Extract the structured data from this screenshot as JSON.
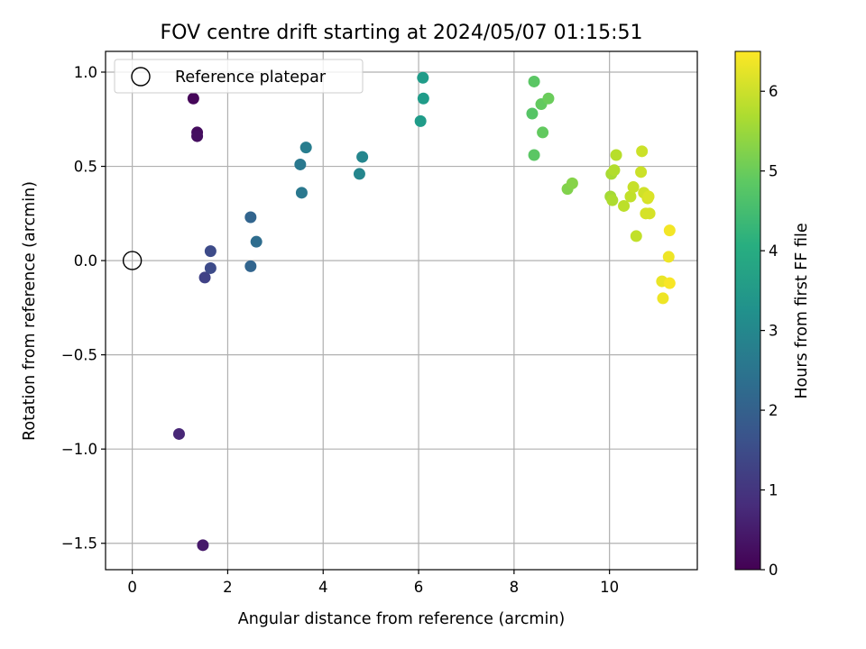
{
  "chart_data": {
    "type": "scatter",
    "title": "FOV centre drift starting at 2024/05/07 01:15:51",
    "xlabel": "Angular distance from reference (arcmin)",
    "ylabel": "Rotation from reference (arcmin)",
    "xlim": [
      -0.56,
      11.84
    ],
    "ylim": [
      -1.64,
      1.11
    ],
    "x_ticks": [
      0,
      2,
      4,
      6,
      8,
      10
    ],
    "y_ticks": [
      -1.5,
      -1.0,
      -0.5,
      0.0,
      0.5,
      1.0
    ],
    "x_tick_labels": [
      "0",
      "2",
      "4",
      "6",
      "8",
      "10"
    ],
    "y_tick_labels": [
      "−1.5",
      "−1.0",
      "−0.5",
      "0.0",
      "0.5",
      "1.0"
    ],
    "grid": true,
    "legend": {
      "placement": "top-left",
      "entries": [
        "Reference platepar"
      ]
    },
    "reference_point": {
      "x": 0.0,
      "y": 0.0,
      "label": "Reference platepar",
      "marker": "open-circle"
    },
    "colormap": "viridis",
    "colorbar": {
      "label": "Hours from first FF file",
      "min": 0,
      "max": 6.5,
      "ticks": [
        0,
        1,
        2,
        3,
        4,
        5,
        6
      ],
      "tick_labels": [
        "0",
        "1",
        "2",
        "3",
        "4",
        "5",
        "6"
      ]
    },
    "points": [
      {
        "x": 1.28,
        "y": 0.86,
        "hours": 0.1
      },
      {
        "x": 1.36,
        "y": 0.68,
        "hours": 0.2
      },
      {
        "x": 1.36,
        "y": 0.66,
        "hours": 0.25
      },
      {
        "x": 0.98,
        "y": -0.92,
        "hours": 0.7
      },
      {
        "x": 1.48,
        "y": -1.51,
        "hours": 0.45
      },
      {
        "x": 1.52,
        "y": -0.09,
        "hours": 1.3
      },
      {
        "x": 1.64,
        "y": -0.04,
        "hours": 1.5
      },
      {
        "x": 1.64,
        "y": 0.05,
        "hours": 1.5
      },
      {
        "x": 2.48,
        "y": 0.23,
        "hours": 2.1
      },
      {
        "x": 2.48,
        "y": -0.03,
        "hours": 2.1
      },
      {
        "x": 2.6,
        "y": 0.1,
        "hours": 2.3
      },
      {
        "x": 3.52,
        "y": 0.51,
        "hours": 2.6
      },
      {
        "x": 3.55,
        "y": 0.36,
        "hours": 2.6
      },
      {
        "x": 3.64,
        "y": 0.6,
        "hours": 2.75
      },
      {
        "x": 4.76,
        "y": 0.46,
        "hours": 3.0
      },
      {
        "x": 4.82,
        "y": 0.55,
        "hours": 3.0
      },
      {
        "x": 6.04,
        "y": 0.74,
        "hours": 3.55
      },
      {
        "x": 6.09,
        "y": 0.97,
        "hours": 3.55
      },
      {
        "x": 6.1,
        "y": 0.86,
        "hours": 3.55
      },
      {
        "x": 8.38,
        "y": 0.78,
        "hours": 4.75
      },
      {
        "x": 8.42,
        "y": 0.95,
        "hours": 4.8
      },
      {
        "x": 8.42,
        "y": 0.56,
        "hours": 4.8
      },
      {
        "x": 8.57,
        "y": 0.83,
        "hours": 4.9
      },
      {
        "x": 8.6,
        "y": 0.68,
        "hours": 4.9
      },
      {
        "x": 8.72,
        "y": 0.86,
        "hours": 5.0
      },
      {
        "x": 9.12,
        "y": 0.38,
        "hours": 5.25
      },
      {
        "x": 9.22,
        "y": 0.41,
        "hours": 5.3
      },
      {
        "x": 10.02,
        "y": 0.34,
        "hours": 5.6
      },
      {
        "x": 10.04,
        "y": 0.46,
        "hours": 5.65
      },
      {
        "x": 10.06,
        "y": 0.32,
        "hours": 5.7
      },
      {
        "x": 10.1,
        "y": 0.48,
        "hours": 5.75
      },
      {
        "x": 10.14,
        "y": 0.56,
        "hours": 5.8
      },
      {
        "x": 10.3,
        "y": 0.29,
        "hours": 5.85
      },
      {
        "x": 10.44,
        "y": 0.34,
        "hours": 5.9
      },
      {
        "x": 10.5,
        "y": 0.39,
        "hours": 5.95
      },
      {
        "x": 10.56,
        "y": 0.13,
        "hours": 5.9
      },
      {
        "x": 10.66,
        "y": 0.47,
        "hours": 6.0
      },
      {
        "x": 10.68,
        "y": 0.58,
        "hours": 6.0
      },
      {
        "x": 10.72,
        "y": 0.36,
        "hours": 6.05
      },
      {
        "x": 10.76,
        "y": 0.25,
        "hours": 6.1
      },
      {
        "x": 10.8,
        "y": 0.33,
        "hours": 6.1
      },
      {
        "x": 10.82,
        "y": 0.34,
        "hours": 6.15
      },
      {
        "x": 10.84,
        "y": 0.25,
        "hours": 6.1
      },
      {
        "x": 11.1,
        "y": -0.11,
        "hours": 6.3
      },
      {
        "x": 11.12,
        "y": -0.2,
        "hours": 6.35
      },
      {
        "x": 11.24,
        "y": 0.02,
        "hours": 6.35
      },
      {
        "x": 11.26,
        "y": 0.16,
        "hours": 6.4
      },
      {
        "x": 11.26,
        "y": -0.12,
        "hours": 6.45
      }
    ]
  }
}
